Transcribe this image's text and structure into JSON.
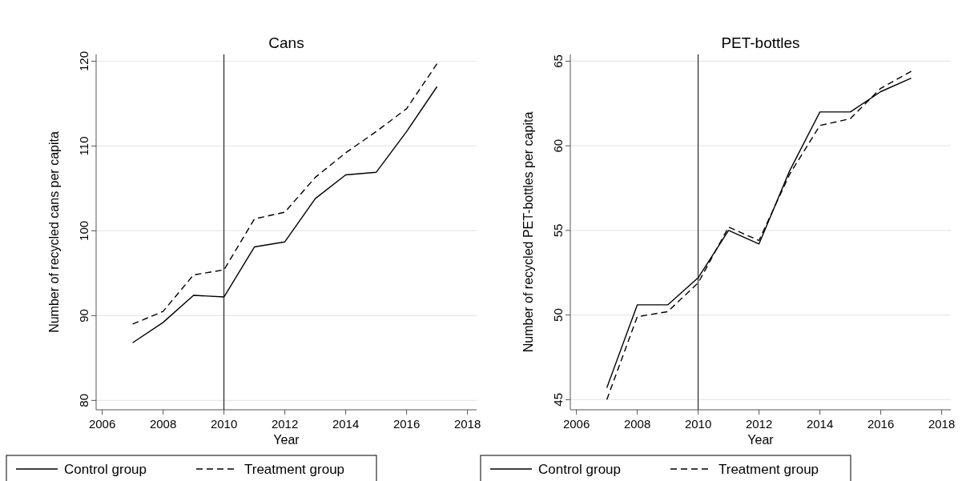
{
  "chart_data": [
    {
      "type": "line",
      "title": "Cans",
      "xlabel": "Year",
      "ylabel": "Number of recycled cans per capita",
      "x": [
        2007,
        2008,
        2009,
        2010,
        2011,
        2012,
        2013,
        2014,
        2015,
        2016,
        2017
      ],
      "series": [
        {
          "name": "Control group",
          "color": "#000000",
          "line_style": "solid",
          "values": [
            86.8,
            89.2,
            92.4,
            92.2,
            98.1,
            98.7,
            103.8,
            106.6,
            106.9,
            111.7,
            117.0
          ]
        },
        {
          "name": "Treatment group",
          "color": "#000000",
          "line_style": "dashed",
          "values": [
            89.0,
            90.5,
            94.8,
            95.4,
            101.4,
            102.2,
            106.3,
            109.2,
            111.7,
            114.4,
            119.7
          ]
        }
      ],
      "xlim": [
        2005.8,
        2018.3
      ],
      "xticks": [
        2006,
        2008,
        2010,
        2012,
        2014,
        2016,
        2018
      ],
      "ylim": [
        78.9,
        120.8
      ],
      "yticks": [
        80,
        90,
        100,
        110,
        120
      ],
      "ref_lines": [
        {
          "axis": "x",
          "value": 2010,
          "color": "#000000"
        }
      ],
      "grid": "y",
      "legend": "bottom",
      "marker": "none"
    },
    {
      "type": "line",
      "title": "PET-bottles",
      "xlabel": "Year",
      "ylabel": "Number of recycled PET-bottles per capita",
      "x": [
        2007,
        2008,
        2009,
        2010,
        2011,
        2012,
        2013,
        2014,
        2015,
        2016,
        2017
      ],
      "series": [
        {
          "name": "Control group",
          "color": "#000000",
          "line_style": "solid",
          "values": [
            45.7,
            50.6,
            50.6,
            52.2,
            55.0,
            54.2,
            58.5,
            62.0,
            62.0,
            63.2,
            64.0
          ]
        },
        {
          "name": "Treatment group",
          "color": "#000000",
          "line_style": "dashed",
          "values": [
            45.0,
            49.9,
            50.2,
            51.9,
            55.2,
            54.4,
            58.3,
            61.2,
            61.6,
            63.4,
            64.4
          ]
        }
      ],
      "xlim": [
        2005.8,
        2018.3
      ],
      "xticks": [
        2006,
        2008,
        2010,
        2012,
        2014,
        2016,
        2018
      ],
      "ylim": [
        44.4,
        65.4
      ],
      "yticks": [
        45,
        50,
        55,
        60,
        65
      ],
      "ref_lines": [
        {
          "axis": "x",
          "value": 2010,
          "color": "#000000"
        }
      ],
      "grid": "y",
      "legend": "bottom",
      "marker": "none"
    }
  ]
}
